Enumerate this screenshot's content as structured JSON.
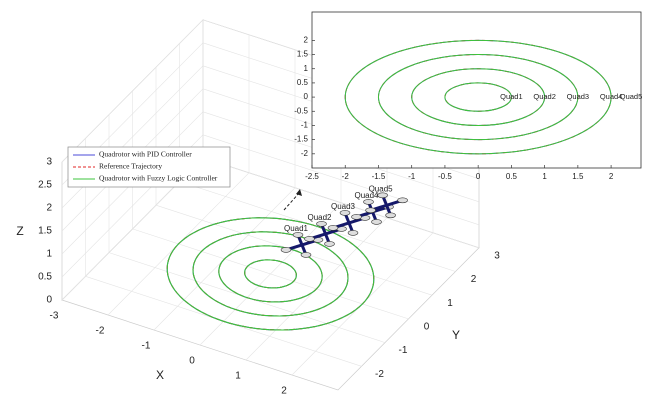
{
  "chart_data": [
    {
      "type": "trajectory3d",
      "xlabel": "X",
      "ylabel": "Y",
      "zlabel": "Z",
      "xlim": [
        -3,
        3
      ],
      "ylim": [
        -3,
        3
      ],
      "zlim": [
        0,
        3
      ],
      "xticks": [
        -3,
        -2,
        -1,
        0,
        1,
        2
      ],
      "yticks": [
        -2,
        -1,
        0,
        1,
        2,
        3
      ],
      "zticks": [
        0,
        0.5,
        1,
        1.5,
        2,
        2.5,
        3
      ],
      "grid": true,
      "series": [
        {
          "name": "Quadrotor with PID Controller",
          "color": "#4b4bd8",
          "dash": false,
          "values": [
            0.5,
            1,
            1.5,
            2
          ]
        },
        {
          "name": "Reference Trajectory",
          "color": "#e02424",
          "dash": true,
          "values": [
            0.5,
            1,
            1.5,
            2
          ]
        },
        {
          "name": "Quadrotor with Fuzzy Logic Controller",
          "color": "#3cc43c",
          "dash": false,
          "values": [
            0.5,
            1,
            1.5,
            2
          ]
        }
      ],
      "quads": {
        "labels": [
          "Quad1",
          "Quad2",
          "Quad3",
          "Quad4",
          "Quad5"
        ],
        "positions": [
          0.5,
          1,
          1.5,
          2,
          2.3
        ]
      }
    },
    {
      "type": "trajectory2d",
      "xlim": [
        -2.5,
        2.45
      ],
      "ylim": [
        -2.5,
        3
      ],
      "xticks": [
        -2.5,
        -2,
        -1.5,
        -1,
        -0.5,
        0,
        0.5,
        1,
        1.5,
        2
      ],
      "yticks": [
        -2,
        -1.5,
        -1,
        -0.5,
        0,
        0.5,
        1,
        1.5,
        2
      ]
    }
  ]
}
